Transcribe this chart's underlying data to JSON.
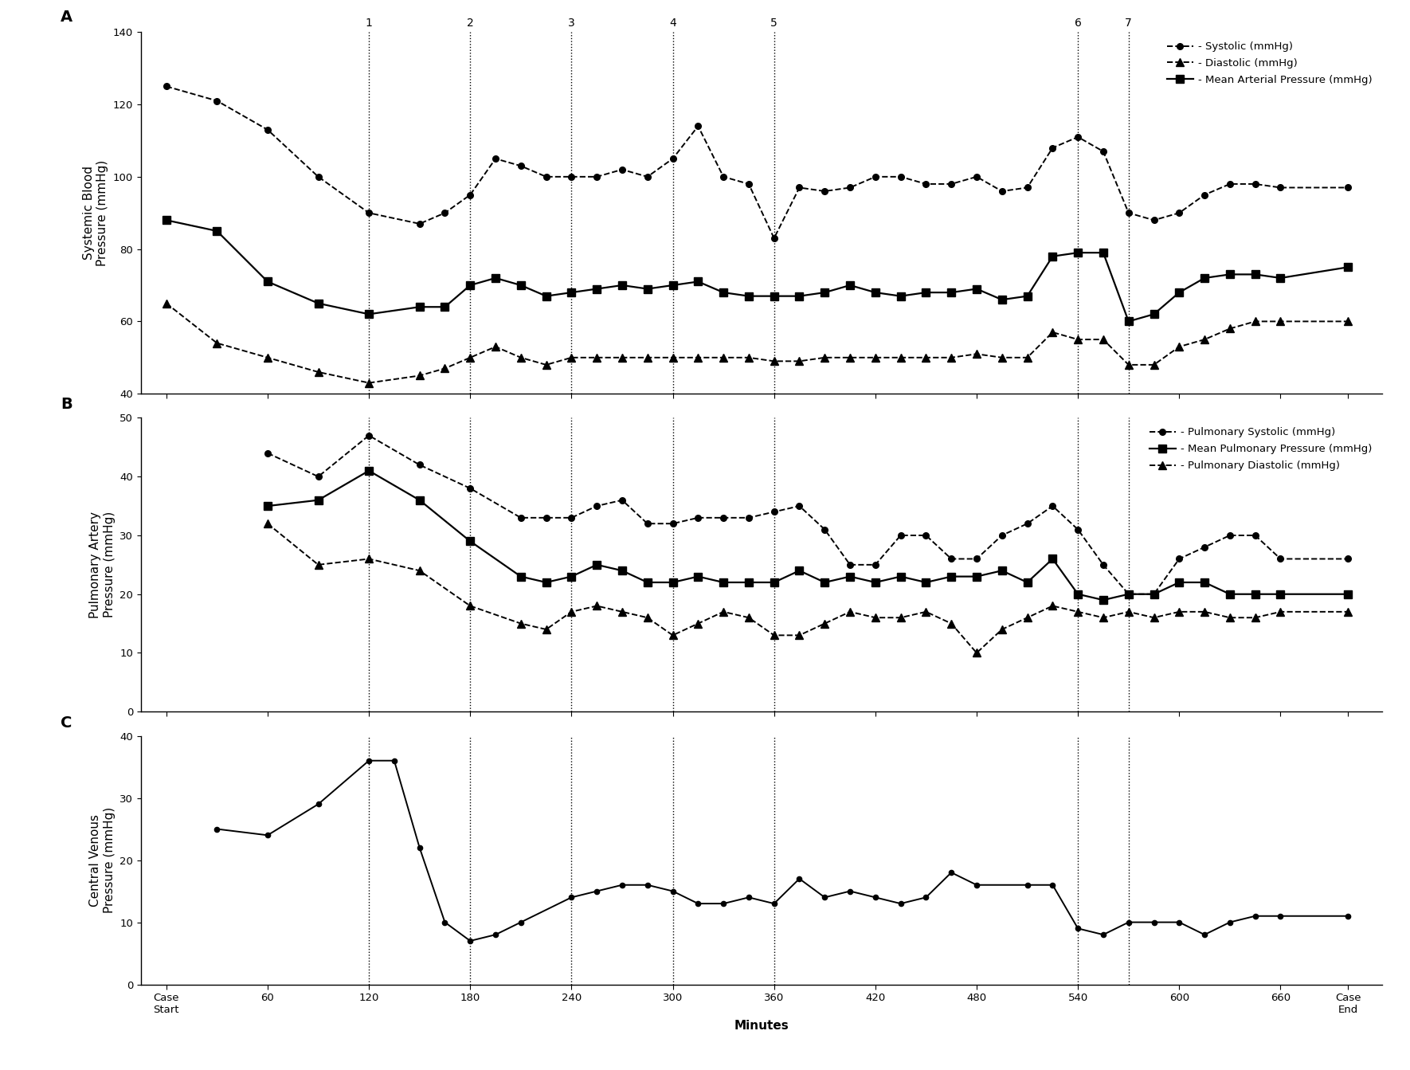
{
  "vline_positions": [
    120,
    180,
    240,
    300,
    360,
    540,
    570
  ],
  "vline_labels": [
    "1",
    "2",
    "3",
    "4",
    "5",
    "6",
    "7"
  ],
  "x_ticks_values": [
    0,
    60,
    120,
    180,
    240,
    300,
    360,
    420,
    480,
    540,
    600,
    660,
    700
  ],
  "x_ticks_labels": [
    "Case\nStart",
    "60",
    "120",
    "180",
    "240",
    "300",
    "360",
    "420",
    "480",
    "540",
    "600",
    "660",
    "Case\nEnd"
  ],
  "xlim": [
    -15,
    720
  ],
  "xlabel": "Minutes",
  "panel_A": {
    "ylabel": "Systemic Blood\nPressure (mmHg)",
    "ylim": [
      40,
      140
    ],
    "yticks": [
      40,
      60,
      80,
      100,
      120,
      140
    ],
    "systolic_x": [
      0,
      30,
      60,
      90,
      120,
      150,
      165,
      180,
      195,
      210,
      225,
      240,
      255,
      270,
      285,
      300,
      315,
      330,
      345,
      360,
      375,
      390,
      405,
      420,
      435,
      450,
      465,
      480,
      495,
      510,
      525,
      540,
      555,
      570,
      585,
      600,
      615,
      630,
      645,
      660,
      700
    ],
    "systolic_y": [
      125,
      121,
      113,
      100,
      90,
      87,
      90,
      95,
      105,
      103,
      100,
      100,
      100,
      102,
      100,
      105,
      114,
      100,
      98,
      83,
      97,
      96,
      97,
      100,
      100,
      98,
      98,
      100,
      96,
      97,
      108,
      111,
      107,
      90,
      88,
      90,
      95,
      98,
      98,
      97,
      97
    ],
    "diastolic_x": [
      0,
      30,
      60,
      90,
      120,
      150,
      165,
      180,
      195,
      210,
      225,
      240,
      255,
      270,
      285,
      300,
      315,
      330,
      345,
      360,
      375,
      390,
      405,
      420,
      435,
      450,
      465,
      480,
      495,
      510,
      525,
      540,
      555,
      570,
      585,
      600,
      615,
      630,
      645,
      660,
      700
    ],
    "diastolic_y": [
      65,
      54,
      50,
      46,
      43,
      45,
      47,
      50,
      53,
      50,
      48,
      50,
      50,
      50,
      50,
      50,
      50,
      50,
      50,
      49,
      49,
      50,
      50,
      50,
      50,
      50,
      50,
      51,
      50,
      50,
      57,
      55,
      55,
      48,
      48,
      53,
      55,
      58,
      60,
      60,
      60
    ],
    "map_x": [
      0,
      30,
      60,
      90,
      120,
      150,
      165,
      180,
      195,
      210,
      225,
      240,
      255,
      270,
      285,
      300,
      315,
      330,
      345,
      360,
      375,
      390,
      405,
      420,
      435,
      450,
      465,
      480,
      495,
      510,
      525,
      540,
      555,
      570,
      585,
      600,
      615,
      630,
      645,
      660,
      700
    ],
    "map_y": [
      88,
      85,
      71,
      65,
      62,
      64,
      64,
      70,
      72,
      70,
      67,
      68,
      69,
      70,
      69,
      70,
      71,
      68,
      67,
      67,
      67,
      68,
      70,
      68,
      67,
      68,
      68,
      69,
      66,
      67,
      78,
      79,
      79,
      60,
      62,
      68,
      72,
      73,
      73,
      72,
      75
    ],
    "legend": [
      "- Systolic (mmHg)",
      "- Diastolic (mmHg)",
      "- Mean Arterial Pressure (mmHg)"
    ]
  },
  "panel_B": {
    "ylabel": "Pulmonary Artery\nPressure (mmHg)",
    "ylim": [
      0,
      50
    ],
    "yticks": [
      0,
      10,
      20,
      30,
      40,
      50
    ],
    "pul_sys_x": [
      60,
      90,
      120,
      150,
      180,
      210,
      225,
      240,
      255,
      270,
      285,
      300,
      315,
      330,
      345,
      360,
      375,
      390,
      405,
      420,
      435,
      450,
      465,
      480,
      495,
      510,
      525,
      540,
      555,
      570,
      585,
      600,
      615,
      630,
      645,
      660,
      700
    ],
    "pul_sys_y": [
      44,
      40,
      47,
      42,
      38,
      33,
      33,
      33,
      35,
      36,
      32,
      32,
      33,
      33,
      33,
      34,
      35,
      31,
      25,
      25,
      30,
      30,
      26,
      26,
      30,
      32,
      35,
      31,
      25,
      20,
      20,
      26,
      28,
      30,
      30,
      26,
      26
    ],
    "mean_pul_x": [
      60,
      90,
      120,
      150,
      180,
      210,
      225,
      240,
      255,
      270,
      285,
      300,
      315,
      330,
      345,
      360,
      375,
      390,
      405,
      420,
      435,
      450,
      465,
      480,
      495,
      510,
      525,
      540,
      555,
      570,
      585,
      600,
      615,
      630,
      645,
      660,
      700
    ],
    "mean_pul_y": [
      35,
      36,
      41,
      36,
      29,
      23,
      22,
      23,
      25,
      24,
      22,
      22,
      23,
      22,
      22,
      22,
      24,
      22,
      23,
      22,
      23,
      22,
      23,
      23,
      24,
      22,
      26,
      20,
      19,
      20,
      20,
      22,
      22,
      20,
      20,
      20,
      20
    ],
    "pul_dia_x": [
      60,
      90,
      120,
      150,
      180,
      210,
      225,
      240,
      255,
      270,
      285,
      300,
      315,
      330,
      345,
      360,
      375,
      390,
      405,
      420,
      435,
      450,
      465,
      480,
      495,
      510,
      525,
      540,
      555,
      570,
      585,
      600,
      615,
      630,
      645,
      660,
      700
    ],
    "pul_dia_y": [
      32,
      25,
      26,
      24,
      18,
      15,
      14,
      17,
      18,
      17,
      16,
      13,
      15,
      17,
      16,
      13,
      13,
      15,
      17,
      16,
      16,
      17,
      15,
      10,
      14,
      16,
      18,
      17,
      16,
      17,
      16,
      17,
      17,
      16,
      16,
      17,
      17
    ],
    "legend": [
      "- Pulmonary Systolic (mmHg)",
      "- Mean Pulmonary Pressure (mmHg)",
      "- Pulmonary Diastolic (mmHg)"
    ]
  },
  "panel_C": {
    "ylabel": "Central Venous\nPressure (mmHg)",
    "ylim": [
      0,
      40
    ],
    "yticks": [
      0,
      10,
      20,
      30,
      40
    ],
    "cvp_x": [
      30,
      60,
      90,
      120,
      135,
      150,
      165,
      180,
      195,
      210,
      240,
      255,
      270,
      285,
      300,
      315,
      330,
      345,
      360,
      375,
      390,
      405,
      420,
      435,
      450,
      465,
      480,
      510,
      525,
      540,
      555,
      570,
      585,
      600,
      615,
      630,
      645,
      660,
      700
    ],
    "cvp_y": [
      25,
      24,
      29,
      36,
      36,
      22,
      10,
      7,
      8,
      10,
      14,
      15,
      16,
      16,
      15,
      13,
      13,
      14,
      13,
      17,
      14,
      15,
      14,
      13,
      14,
      18,
      16,
      16,
      16,
      9,
      8,
      10,
      10,
      10,
      8,
      10,
      11,
      11,
      11
    ]
  }
}
